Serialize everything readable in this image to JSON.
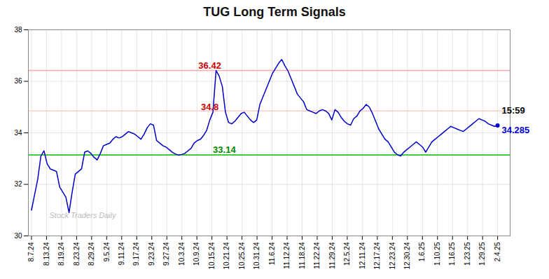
{
  "chart_data": {
    "type": "line",
    "title": "TUG Long Term Signals",
    "x": [
      0,
      1,
      2,
      3,
      4,
      5,
      6,
      7,
      8,
      9,
      10,
      11,
      12,
      13,
      14,
      15,
      16,
      17,
      18,
      19,
      20,
      21,
      22,
      23,
      24,
      25,
      26,
      27,
      28,
      29,
      30,
      31,
      32,
      33,
      34,
      35,
      36,
      37,
      38,
      39,
      40,
      41,
      42,
      43,
      44,
      45,
      46,
      47,
      48,
      49,
      50,
      51,
      52,
      53,
      54,
      55,
      56,
      57,
      58,
      59,
      60,
      61,
      62,
      63,
      64,
      65,
      66,
      67,
      68,
      69,
      70,
      71,
      72,
      73,
      74,
      75,
      76,
      77,
      78,
      79,
      80,
      81,
      82,
      83,
      84,
      85,
      86,
      87,
      88,
      89,
      90,
      91,
      92,
      93,
      94,
      95,
      96,
      97,
      98,
      99,
      100,
      101,
      102,
      103,
      104,
      105,
      106,
      107,
      108,
      109,
      110,
      111,
      112,
      113,
      114,
      115,
      116,
      117,
      118,
      119,
      120,
      121,
      122,
      123,
      124,
      125,
      126,
      127,
      128,
      129,
      130,
      131,
      132,
      133,
      134,
      135,
      136,
      137,
      138,
      139,
      140,
      141,
      142,
      143,
      144,
      145,
      146,
      147,
      148,
      149
    ],
    "values": [
      31.0,
      31.6,
      32.2,
      33.1,
      33.3,
      32.8,
      32.6,
      32.55,
      32.5,
      31.9,
      31.7,
      31.5,
      30.9,
      31.7,
      32.4,
      32.5,
      32.6,
      33.25,
      33.3,
      33.2,
      33.05,
      32.95,
      33.2,
      33.5,
      33.55,
      33.6,
      33.75,
      33.85,
      33.8,
      33.85,
      33.95,
      34.05,
      34.0,
      33.95,
      33.85,
      33.75,
      33.95,
      34.2,
      34.35,
      34.3,
      33.7,
      33.6,
      33.5,
      33.45,
      33.35,
      33.25,
      33.18,
      33.14,
      33.16,
      33.2,
      33.3,
      33.4,
      33.6,
      33.7,
      33.75,
      33.9,
      34.1,
      34.5,
      34.8,
      36.42,
      36.2,
      35.8,
      34.8,
      34.4,
      34.35,
      34.45,
      34.6,
      34.75,
      34.8,
      34.65,
      34.5,
      34.4,
      34.5,
      35.1,
      35.4,
      35.7,
      36.0,
      36.3,
      36.5,
      36.7,
      36.85,
      36.6,
      36.4,
      36.1,
      35.8,
      35.5,
      35.35,
      35.2,
      34.9,
      34.85,
      34.8,
      34.75,
      34.85,
      34.9,
      34.85,
      34.75,
      34.5,
      34.9,
      34.8,
      34.6,
      34.45,
      34.35,
      34.3,
      34.55,
      34.65,
      34.85,
      34.95,
      35.1,
      35.0,
      34.75,
      34.45,
      34.15,
      33.95,
      33.75,
      33.65,
      33.45,
      33.25,
      33.15,
      33.1,
      33.25,
      33.35,
      33.45,
      33.55,
      33.65,
      33.55,
      33.45,
      33.25,
      33.45,
      33.65,
      33.75,
      33.85,
      33.95,
      34.05,
      34.15,
      34.25,
      34.2,
      34.15,
      34.1,
      34.05,
      34.15,
      34.25,
      34.35,
      34.45,
      34.55,
      34.5,
      34.45,
      34.35,
      34.3,
      34.25,
      34.285
    ],
    "color": "#0000cc",
    "xlim": [
      -1,
      153
    ],
    "xticks": [
      {
        "value": 0,
        "label": "8.7.24"
      },
      {
        "value": 4.806,
        "label": "8.13.24"
      },
      {
        "value": 9.613,
        "label": "8.19.24"
      },
      {
        "value": 14.419,
        "label": "8.23.24"
      },
      {
        "value": 19.226,
        "label": "8.29.24"
      },
      {
        "value": 24.032,
        "label": "9.5.24"
      },
      {
        "value": 28.839,
        "label": "9.11.24"
      },
      {
        "value": 33.645,
        "label": "9.17.24"
      },
      {
        "value": 38.452,
        "label": "9.23.24"
      },
      {
        "value": 43.258,
        "label": "9.27.24"
      },
      {
        "value": 48.065,
        "label": "10.3.24"
      },
      {
        "value": 52.871,
        "label": "10.9.24"
      },
      {
        "value": 57.677,
        "label": "10.15.24"
      },
      {
        "value": 62.484,
        "label": "10.21.24"
      },
      {
        "value": 67.29,
        "label": "10.25.24"
      },
      {
        "value": 72.097,
        "label": "10.31.24"
      },
      {
        "value": 76.903,
        "label": "11.6.24"
      },
      {
        "value": 81.71,
        "label": "11.12.24"
      },
      {
        "value": 86.516,
        "label": "11.18.24"
      },
      {
        "value": 91.323,
        "label": "11.22.24"
      },
      {
        "value": 96.129,
        "label": "11.29.24"
      },
      {
        "value": 100.935,
        "label": "12.5.24"
      },
      {
        "value": 105.742,
        "label": "12.11.24"
      },
      {
        "value": 110.548,
        "label": "12.17.24"
      },
      {
        "value": 115.355,
        "label": "12.23.24"
      },
      {
        "value": 120.161,
        "label": "12.30.24"
      },
      {
        "value": 124.968,
        "label": "1.6.25"
      },
      {
        "value": 129.774,
        "label": "1.10.25"
      },
      {
        "value": 134.581,
        "label": "1.16.25"
      },
      {
        "value": 139.387,
        "label": "1.23.25"
      },
      {
        "value": 144.194,
        "label": "1.29.25"
      },
      {
        "value": 149,
        "label": "2.4.25"
      }
    ],
    "ylim": [
      30,
      38
    ],
    "yticks": [
      30,
      32,
      34,
      36,
      38
    ],
    "grid": true,
    "hlines": [
      {
        "y": 33.14,
        "color": "#00bb00"
      },
      {
        "y": 36.42,
        "color": "#ffaaaa"
      },
      {
        "y": 34.85,
        "color": "#ffcccc"
      }
    ],
    "annotations": [
      {
        "text": "36.42",
        "x": 57,
        "y": 36.42,
        "color": "#cc0000",
        "anchor": "above"
      },
      {
        "text": "34.8",
        "x": 57,
        "y": 34.8,
        "color": "#cc0000",
        "anchor": "above"
      },
      {
        "text": "33.14",
        "x": 58,
        "y": 33.14,
        "color": "#008800",
        "anchor": "above-right"
      },
      {
        "text": "15:59",
        "x": 150.3,
        "y": 34.85,
        "color": "#000000",
        "anchor": "right"
      },
      {
        "text": "34.285",
        "x": 150.3,
        "y": 34.285,
        "color": "#0000cc",
        "anchor": "below-right"
      }
    ],
    "watermark": "Stock Traders Daily"
  }
}
